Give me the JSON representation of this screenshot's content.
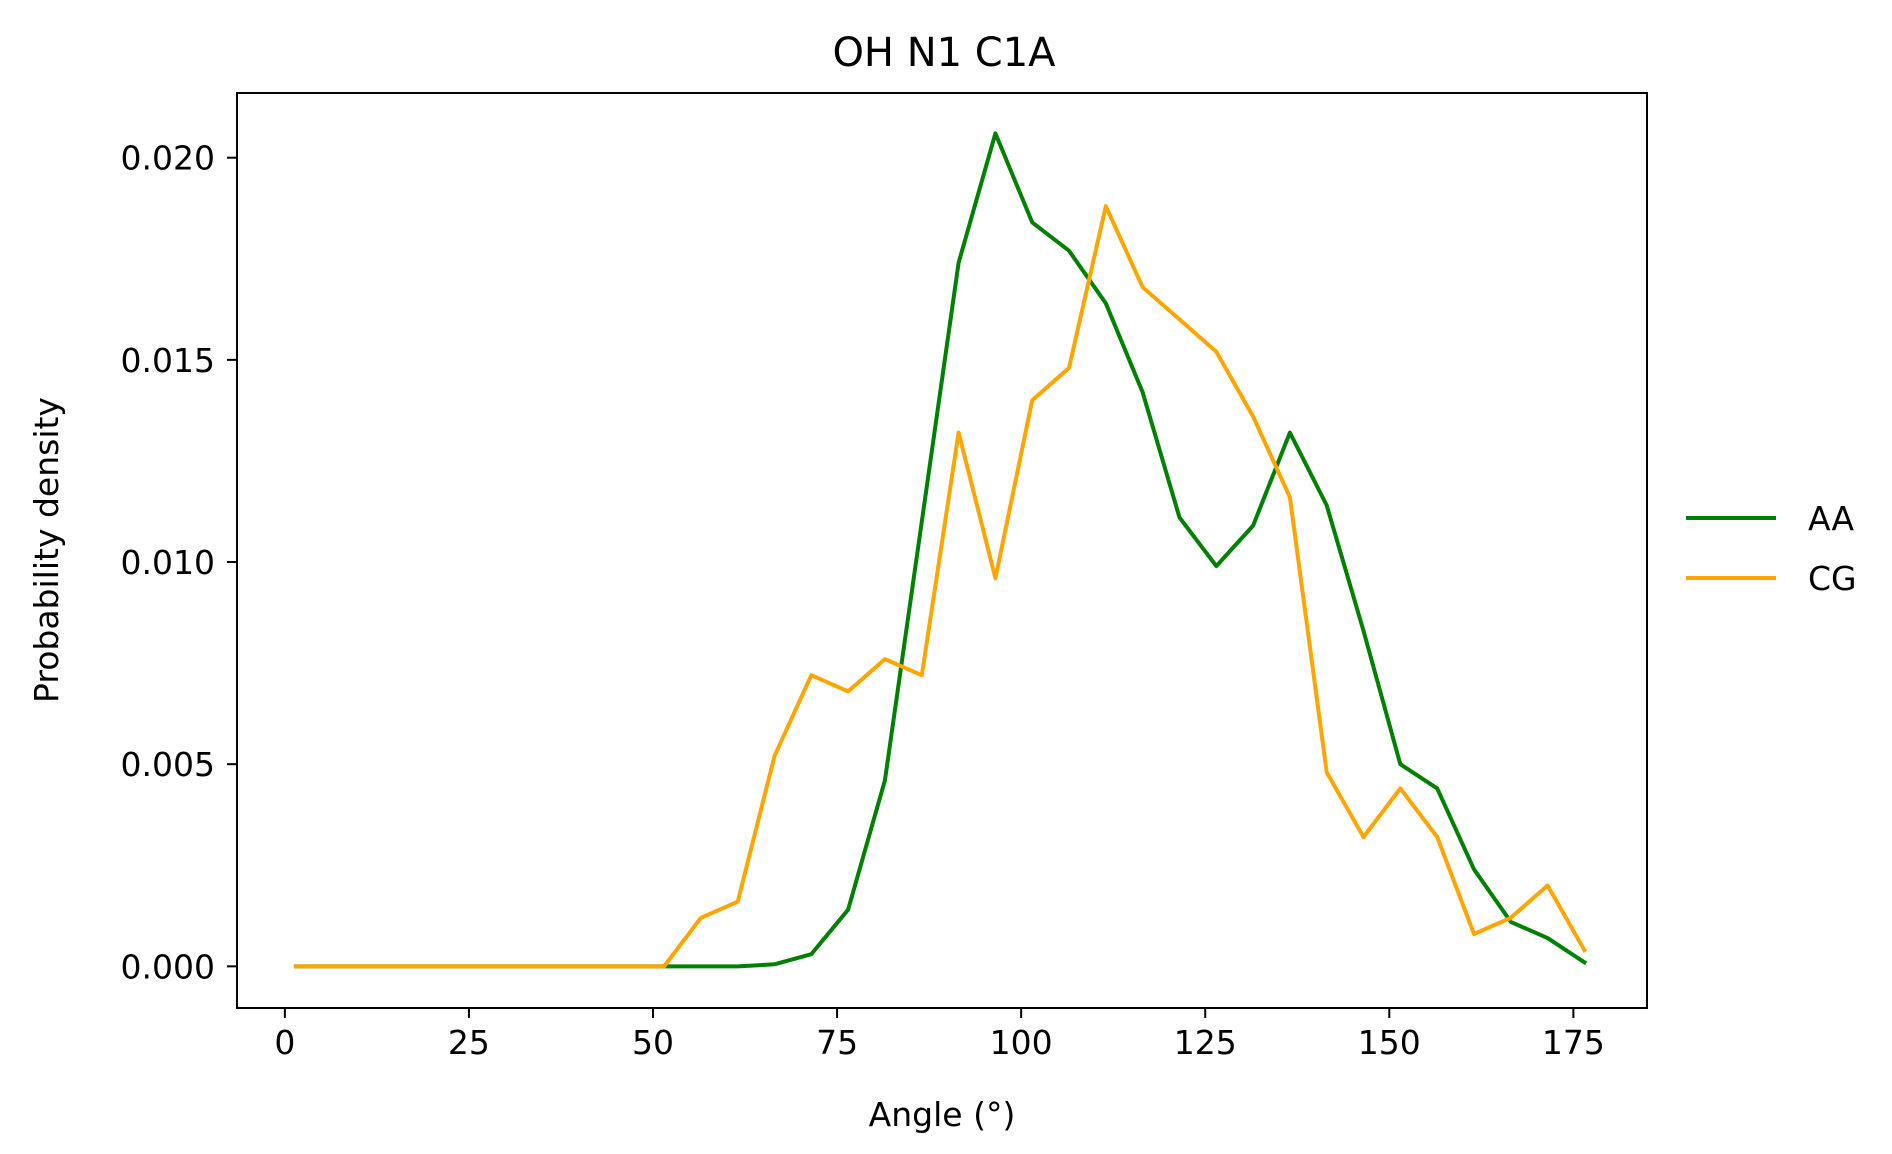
{
  "chart_data": {
    "type": "line",
    "title": "OH N1 C1A",
    "xlabel": "Angle (°)",
    "ylabel": "Probability density",
    "xlim": [
      -6.5,
      185
    ],
    "ylim": [
      -0.00103,
      0.0216
    ],
    "xticks": [
      0,
      25,
      50,
      75,
      100,
      125,
      150,
      175
    ],
    "xtick_labels": [
      "0",
      "25",
      "50",
      "75",
      "100",
      "125",
      "150",
      "175"
    ],
    "yticks": [
      0.0,
      0.005,
      0.01,
      0.015,
      0.02
    ],
    "ytick_labels": [
      "0.000",
      "0.005",
      "0.010",
      "0.015",
      "0.020"
    ],
    "grid": false,
    "legend_position": "outside-right",
    "x": [
      1.5,
      6.5,
      11.5,
      16.5,
      21.5,
      26.5,
      31.5,
      36.5,
      41.5,
      46.5,
      51.5,
      56.5,
      61.5,
      66.5,
      71.5,
      76.5,
      81.5,
      86.5,
      91.5,
      96.5,
      101.5,
      106.5,
      111.5,
      116.5,
      121.5,
      126.5,
      131.5,
      136.5,
      141.5,
      146.5,
      151.5,
      156.5,
      161.5,
      166.5,
      171.5,
      176.5
    ],
    "series": [
      {
        "name": "AA",
        "color": "#008000",
        "values": [
          0,
          0,
          0,
          0,
          0,
          0,
          0,
          0,
          0,
          0,
          0,
          0,
          0,
          5e-05,
          0.0003,
          0.0014,
          0.0046,
          0.011,
          0.0174,
          0.0206,
          0.0184,
          0.0177,
          0.0164,
          0.0142,
          0.0111,
          0.0099,
          0.0109,
          0.0132,
          0.0114,
          0.0083,
          0.005,
          0.0044,
          0.0024,
          0.0011,
          0.0007,
          0.0001
        ]
      },
      {
        "name": "CG",
        "color": "#FFA500",
        "values": [
          0,
          0,
          0,
          0,
          0,
          0,
          0,
          0,
          0,
          0,
          0,
          0.0012,
          0.0016,
          0.0052,
          0.0072,
          0.0068,
          0.0076,
          0.0072,
          0.0132,
          0.0096,
          0.014,
          0.0148,
          0.0188,
          0.0168,
          0.016,
          0.0152,
          0.0136,
          0.0116,
          0.0048,
          0.0032,
          0.0044,
          0.0032,
          0.0008,
          0.0012,
          0.002,
          0.0004
        ]
      }
    ]
  }
}
